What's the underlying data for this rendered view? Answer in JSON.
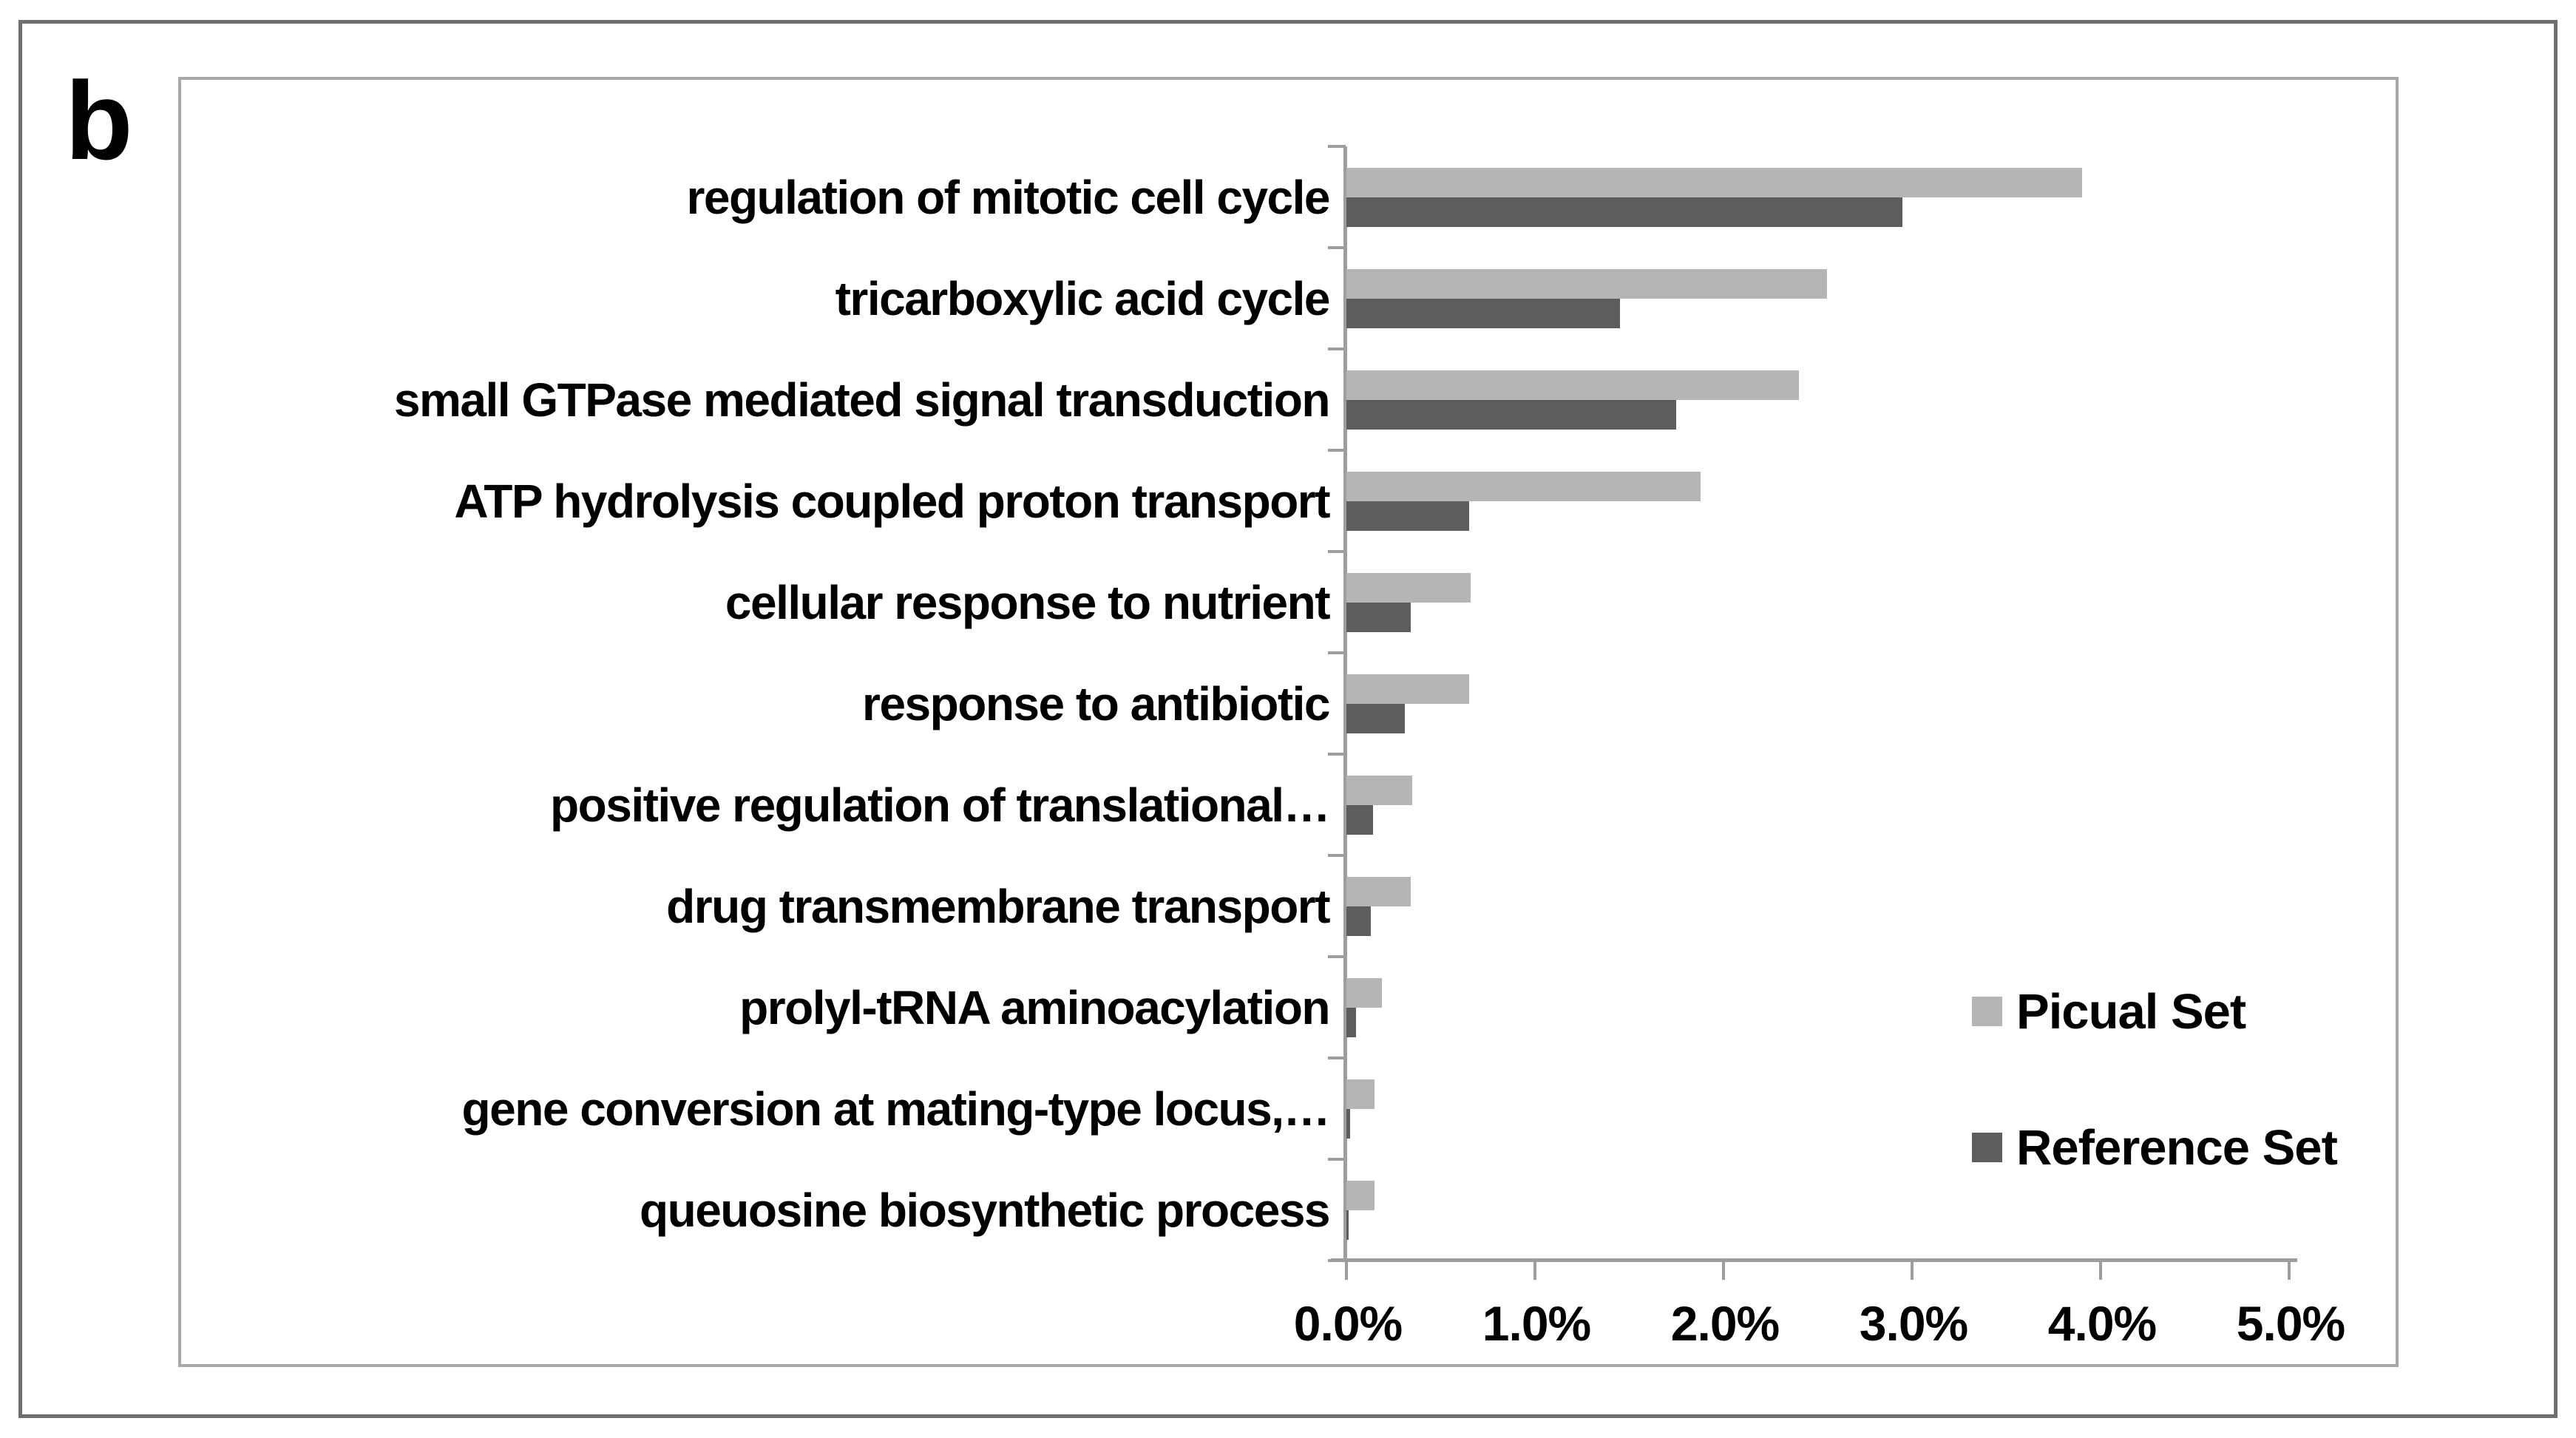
{
  "panel_label": "b",
  "chart_data": {
    "type": "bar",
    "orientation": "horizontal",
    "title": "",
    "xlabel": "",
    "ylabel": "",
    "xlim": [
      0,
      5
    ],
    "x_tick_labels": [
      "0.0%",
      "1.0%",
      "2.0%",
      "3.0%",
      "4.0%",
      "5.0%"
    ],
    "grid": false,
    "legend_position": "right-middle",
    "categories": [
      "regulation of mitotic cell cycle",
      "tricarboxylic acid cycle",
      "small GTPase mediated signal transduction",
      "ATP hydrolysis coupled proton transport",
      "cellular response to nutrient",
      "response to antibiotic",
      "positive regulation of translational…",
      "drug transmembrane transport",
      "prolyl-tRNA aminoacylation",
      "gene conversion at mating-type locus,…",
      "queuosine biosynthetic process"
    ],
    "series": [
      {
        "name": "Picual Set",
        "color": "#b5b5b5",
        "values": [
          3.9,
          2.55,
          2.4,
          1.88,
          0.66,
          0.65,
          0.35,
          0.34,
          0.19,
          0.15,
          0.15
        ]
      },
      {
        "name": "Reference Set",
        "color": "#5d5d5d",
        "values": [
          2.95,
          1.45,
          1.75,
          0.65,
          0.34,
          0.31,
          0.14,
          0.13,
          0.05,
          0.02,
          0.01
        ]
      }
    ]
  },
  "legend": {
    "picual_label": "Picual Set",
    "reference_label": "Reference Set"
  },
  "colors": {
    "bar_light": "#b5b5b5",
    "bar_dark": "#5d5d5d",
    "axis": "#9d9d9d",
    "frame_inner": "#a8a8a8",
    "frame_outer": "#6f6f6f",
    "text": "#000000",
    "background": "#ffffff"
  }
}
